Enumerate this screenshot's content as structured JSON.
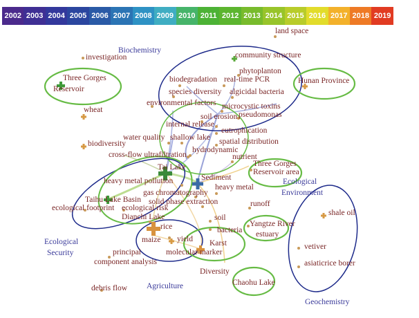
{
  "timeline": {
    "years": [
      "2002",
      "2003",
      "2004",
      "2005",
      "2006",
      "2007",
      "2008",
      "2009",
      "2010",
      "2011",
      "2012",
      "2013",
      "2014",
      "2015",
      "2016",
      "2017",
      "2018",
      "2019"
    ],
    "colors": [
      "#4b2a8c",
      "#3f2f94",
      "#33389c",
      "#2b469f",
      "#2a5aa6",
      "#2b74b4",
      "#2e92c4",
      "#3fadc2",
      "#46b46a",
      "#4cb235",
      "#5cb52f",
      "#78bb2c",
      "#98c42a",
      "#b8cc2a",
      "#e2dc2b",
      "#f3b12b",
      "#ee7a25",
      "#e13b22"
    ]
  },
  "nodes": [
    {
      "label": "land space",
      "marker": "dot"
    },
    {
      "label": "investigation",
      "marker": "dot"
    },
    {
      "label": "community structure",
      "marker": "cross-small-green"
    },
    {
      "label": "phytoplanton",
      "marker": "dot"
    },
    {
      "label": "Three Gorges",
      "marker": "cross-green"
    },
    {
      "label": "Reservoir",
      "marker": "none"
    },
    {
      "label": "biodegradation",
      "marker": "dot"
    },
    {
      "label": "real-time PCR",
      "marker": "dot"
    },
    {
      "label": "Hunan Province",
      "marker": "cross-small-orange"
    },
    {
      "label": "species diversity",
      "marker": "dot"
    },
    {
      "label": "algicidal bacteria",
      "marker": "dot"
    },
    {
      "label": "environmental factors",
      "marker": "dot"
    },
    {
      "label": "microcystic toxins",
      "marker": "dot"
    },
    {
      "label": "wheat",
      "marker": "cross-small-orange"
    },
    {
      "label": "pseudomonas",
      "marker": "dot"
    },
    {
      "label": "soil erosion",
      "marker": "dot"
    },
    {
      "label": "internal release",
      "marker": "dot"
    },
    {
      "label": "eutrophication",
      "marker": "dot"
    },
    {
      "label": "water quality",
      "marker": "dot"
    },
    {
      "label": "shallow lake",
      "marker": "dot"
    },
    {
      "label": "spatial distribution",
      "marker": "dot"
    },
    {
      "label": "biodiversity",
      "marker": "cross-small-orange"
    },
    {
      "label": "hydrodynamic",
      "marker": "dot"
    },
    {
      "label": "cross-flow ultrafiltration",
      "marker": "dot"
    },
    {
      "label": "nutrient",
      "marker": "dot"
    },
    {
      "label": "Three Gorges",
      "marker": "dot"
    },
    {
      "label": "Reservoir area",
      "marker": "none"
    },
    {
      "label": "Tai Lake",
      "marker": "cross-big-green"
    },
    {
      "label": "heavy metal pollution",
      "marker": "dot"
    },
    {
      "label": "Sediment",
      "marker": "cross-blue"
    },
    {
      "label": "gas chromatography",
      "marker": "dot"
    },
    {
      "label": "heavy metal",
      "marker": "dot"
    },
    {
      "label": "Taihu Lake Basin",
      "marker": "cross-green"
    },
    {
      "label": "solid phase extraction",
      "marker": "dot"
    },
    {
      "label": "runoff",
      "marker": "dot"
    },
    {
      "label": "ecological footprint",
      "marker": "dot"
    },
    {
      "label": "ecological risk",
      "marker": "dot"
    },
    {
      "label": "shale oil",
      "marker": "cross-small-orange"
    },
    {
      "label": "Dianchi Lake",
      "marker": "dot"
    },
    {
      "label": "soil",
      "marker": "dot"
    },
    {
      "label": "Yangtze River",
      "marker": "dot"
    },
    {
      "label": "rice",
      "marker": "cross-big-orange"
    },
    {
      "label": "estuary",
      "marker": "none"
    },
    {
      "label": "bacteria",
      "marker": "dot"
    },
    {
      "label": "maize",
      "marker": "dot"
    },
    {
      "label": "yield",
      "marker": "cross-small-orange"
    },
    {
      "label": "Karst",
      "marker": "cross-orange"
    },
    {
      "label": "vetiver",
      "marker": "dot"
    },
    {
      "label": "molecular marker",
      "marker": "dot"
    },
    {
      "label": "principal",
      "marker": "dot"
    },
    {
      "label": "component analysis",
      "marker": "none"
    },
    {
      "label": "asiaticrice borer",
      "marker": "dot"
    },
    {
      "label": "Diversity",
      "marker": "none"
    },
    {
      "label": "debris flow",
      "marker": "dot"
    },
    {
      "label": "Chaohu Lake",
      "marker": "none"
    }
  ],
  "clusters": [
    "Biochemistry",
    "Ecological",
    "Environment",
    "Ecological",
    "Security",
    "Agriculture",
    "Geochemistry"
  ]
}
